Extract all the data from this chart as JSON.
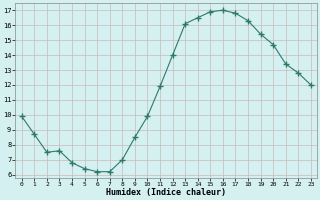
{
  "x": [
    0,
    1,
    2,
    3,
    4,
    5,
    6,
    7,
    8,
    9,
    10,
    11,
    12,
    13,
    14,
    15,
    16,
    17,
    18,
    19,
    20,
    21,
    22,
    23
  ],
  "y": [
    9.9,
    8.7,
    7.5,
    7.6,
    6.8,
    6.4,
    6.2,
    6.2,
    7.0,
    8.5,
    9.9,
    11.9,
    14.0,
    16.1,
    16.5,
    16.9,
    17.0,
    16.8,
    16.3,
    15.4,
    14.7,
    13.4,
    12.8,
    12.0
  ],
  "xlabel": "Humidex (Indice chaleur)",
  "ylim": [
    5.8,
    17.5
  ],
  "xlim": [
    -0.5,
    23.5
  ],
  "yticks": [
    6,
    7,
    8,
    9,
    10,
    11,
    12,
    13,
    14,
    15,
    16,
    17
  ],
  "xticks": [
    0,
    1,
    2,
    3,
    4,
    5,
    6,
    7,
    8,
    9,
    10,
    11,
    12,
    13,
    14,
    15,
    16,
    17,
    18,
    19,
    20,
    21,
    22,
    23
  ],
  "line_color": "#2d7a6a",
  "marker_color": "#2d7a6a",
  "bg_color": "#d5f0f0",
  "grid_color": "#c8b8b8"
}
